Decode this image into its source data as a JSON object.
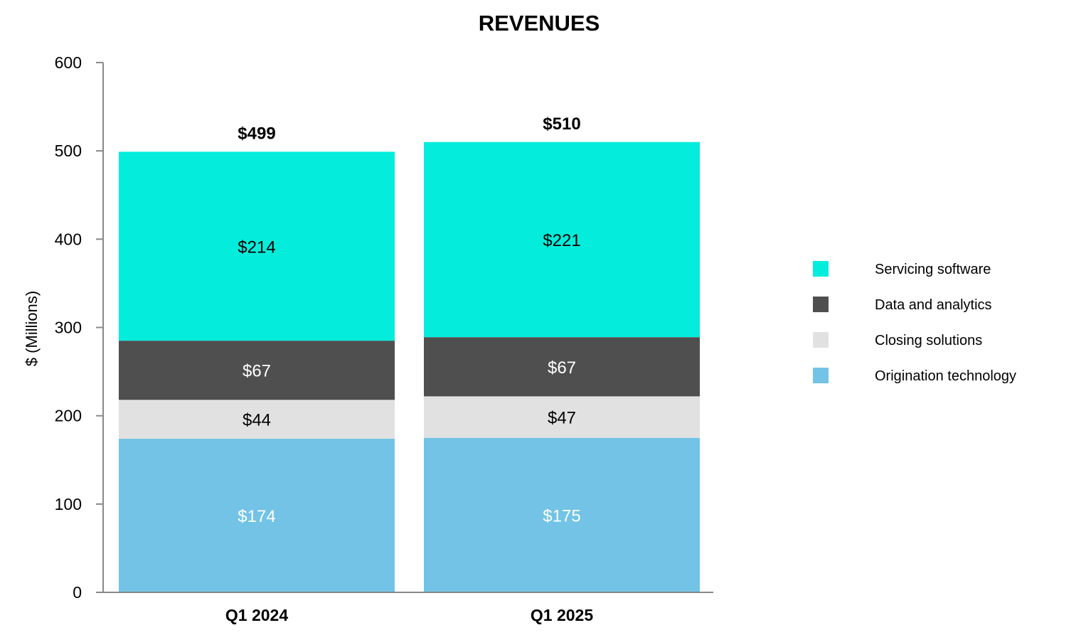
{
  "chart_data": {
    "type": "bar",
    "stacked": true,
    "title": "REVENUES",
    "xlabel": "",
    "ylabel": "$ (Millions)",
    "ylim": [
      0,
      600
    ],
    "yticks": [
      0,
      100,
      200,
      300,
      400,
      500,
      600
    ],
    "grid": false,
    "legend_position": "right",
    "categories": [
      "Q1 2024",
      "Q1 2025"
    ],
    "series": [
      {
        "name": "Origination technology",
        "values": [
          174,
          175
        ],
        "labels": [
          "$174",
          "$175"
        ],
        "color": "#72C3E6",
        "label_color": "#ffffff"
      },
      {
        "name": "Closing solutions",
        "values": [
          44,
          47
        ],
        "labels": [
          "$44",
          "$47"
        ],
        "color": "#E1E1E1",
        "label_color": "#000000"
      },
      {
        "name": "Data and analytics",
        "values": [
          67,
          67
        ],
        "labels": [
          "$67",
          "$67"
        ],
        "color": "#4F4F4F",
        "label_color": "#ffffff"
      },
      {
        "name": "Servicing software",
        "values": [
          214,
          221
        ],
        "labels": [
          "$214",
          "$221"
        ],
        "color": "#04EDDC",
        "label_color": "#000000"
      }
    ],
    "totals": [
      499,
      510
    ],
    "total_labels": [
      "$499",
      "$510"
    ],
    "legend_order": [
      "Servicing software",
      "Data and analytics",
      "Closing solutions",
      "Origination technology"
    ]
  }
}
